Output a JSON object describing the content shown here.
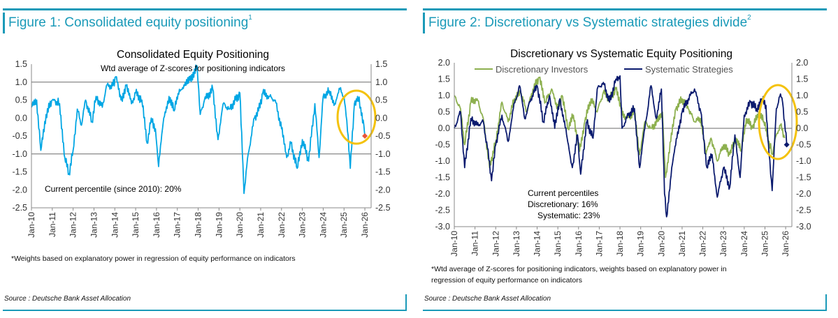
{
  "accent_color": "#1a9ab8",
  "panels": [
    {
      "figure_title": "Figure 1: Consolidated equity positioning",
      "figure_sup": "1",
      "footnote_lines": [
        "*Weights based on explanatory power in regression of equity performance on indicators"
      ],
      "source": "Source : Deutsche Bank Asset Allocation"
    },
    {
      "figure_title": "Figure 2: Discretionary vs Systematic strategies divide",
      "figure_sup": "2",
      "footnote_lines": [
        "*Wtd average of Z-scores for positioning indicators, weights based on explanatory power in",
        "regression of equity performance on indicators"
      ],
      "source": "Source : Deutsche Bank Asset Allocation"
    }
  ],
  "chart_data": [
    {
      "type": "line",
      "title": "Consolidated Equity Positioning",
      "subtitle": "Wtd average of Z-scores for positioning indicators",
      "annotations": [
        "Current percentile (since 2010): 20%"
      ],
      "x_ticks": [
        "Jan-10",
        "Jan-11",
        "Jan-12",
        "Jan-13",
        "Jan-14",
        "Jan-15",
        "Jan-16",
        "Jan-17",
        "Jan-18",
        "Jan-19",
        "Jan-20",
        "Jan-21",
        "Jan-22",
        "Jan-23",
        "Jan-24",
        "Jan-25",
        "Jan-26"
      ],
      "y_ticks": [
        "1.5",
        "1.0",
        "0.5",
        "0.0",
        "-0.5",
        "-1.0",
        "-1.5",
        "-2.0",
        "-2.5"
      ],
      "ylim": [
        -2.5,
        1.5
      ],
      "reference_lines": [
        1,
        -1
      ],
      "highlight_circle": true,
      "series": [
        {
          "name": "Consolidated",
          "color": "#00a6e4",
          "points": [
            [
              2010.0,
              0.3
            ],
            [
              2010.25,
              0.5
            ],
            [
              2010.45,
              -0.9
            ],
            [
              2010.7,
              0.1
            ],
            [
              2011.0,
              0.5
            ],
            [
              2011.35,
              0.4
            ],
            [
              2011.6,
              -1.1
            ],
            [
              2011.8,
              -1.55
            ],
            [
              2012.0,
              -0.9
            ],
            [
              2012.2,
              0.25
            ],
            [
              2012.4,
              -0.2
            ],
            [
              2012.6,
              0.5
            ],
            [
              2012.9,
              -0.1
            ],
            [
              2013.1,
              0.6
            ],
            [
              2013.4,
              0.3
            ],
            [
              2013.6,
              0.9
            ],
            [
              2013.9,
              0.9
            ],
            [
              2014.05,
              1.15
            ],
            [
              2014.3,
              0.5
            ],
            [
              2014.55,
              0.9
            ],
            [
              2014.8,
              0.4
            ],
            [
              2015.0,
              0.7
            ],
            [
              2015.3,
              0.5
            ],
            [
              2015.55,
              -0.7
            ],
            [
              2015.75,
              0.0
            ],
            [
              2015.95,
              -0.3
            ],
            [
              2016.1,
              -1.35
            ],
            [
              2016.35,
              0.0
            ],
            [
              2016.6,
              0.6
            ],
            [
              2016.85,
              0.2
            ],
            [
              2017.1,
              0.8
            ],
            [
              2017.35,
              0.9
            ],
            [
              2017.6,
              1.05
            ],
            [
              2017.95,
              1.45
            ],
            [
              2018.1,
              0.1
            ],
            [
              2018.3,
              0.5
            ],
            [
              2018.7,
              0.8
            ],
            [
              2018.95,
              -0.6
            ],
            [
              2019.2,
              0.4
            ],
            [
              2019.5,
              0.25
            ],
            [
              2019.8,
              0.5
            ],
            [
              2020.0,
              0.7
            ],
            [
              2020.15,
              -1.3
            ],
            [
              2020.2,
              -2.1
            ],
            [
              2020.4,
              -1.0
            ],
            [
              2020.7,
              0.0
            ],
            [
              2020.9,
              0.2
            ],
            [
              2021.1,
              0.7
            ],
            [
              2021.4,
              0.6
            ],
            [
              2021.7,
              0.5
            ],
            [
              2022.0,
              -0.3
            ],
            [
              2022.25,
              -1.1
            ],
            [
              2022.45,
              -0.7
            ],
            [
              2022.75,
              -1.4
            ],
            [
              2023.0,
              -0.6
            ],
            [
              2023.3,
              -1.2
            ],
            [
              2023.6,
              0.4
            ],
            [
              2023.8,
              -1.1
            ],
            [
              2024.0,
              0.6
            ],
            [
              2024.3,
              0.75
            ],
            [
              2024.55,
              0.4
            ],
            [
              2024.8,
              0.8
            ],
            [
              2025.0,
              0.6
            ],
            [
              2025.2,
              -0.5
            ],
            [
              2025.3,
              -1.4
            ],
            [
              2025.5,
              0.4
            ],
            [
              2025.65,
              0.6
            ],
            [
              2025.8,
              0.3
            ],
            [
              2025.95,
              -0.2
            ],
            [
              2026.0,
              -0.5
            ]
          ]
        }
      ]
    },
    {
      "type": "line",
      "title": "Discretionary  vs Systematic Equity Positioning",
      "legend": [
        "Discretionary Investors",
        "Systematic Strategies"
      ],
      "annotations": [
        "Current percentiles",
        "Discretionary: 16%",
        "Systematic: 23%"
      ],
      "x_ticks": [
        "Jan-10",
        "Jan-11",
        "Jan-12",
        "Jan-13",
        "Jan-14",
        "Jan-15",
        "Jan-16",
        "Jan-17",
        "Jan-18",
        "Jan-19",
        "Jan-20",
        "Jan-21",
        "Jan-22",
        "Jan-23",
        "Jan-24",
        "Jan-25",
        "Jan-26"
      ],
      "y_ticks": [
        "2.0",
        "1.5",
        "1.0",
        "0.5",
        "0.0",
        "-0.5",
        "-1.0",
        "-1.5",
        "-2.0",
        "-2.5",
        "-3.0"
      ],
      "ylim": [
        -3.0,
        2.0
      ],
      "reference_lines": [
        0
      ],
      "highlight_circle": true,
      "series": [
        {
          "name": "Discretionary Investors",
          "color": "#8db04f",
          "points": [
            [
              2010.0,
              1.0
            ],
            [
              2010.3,
              0.6
            ],
            [
              2010.5,
              -0.5
            ],
            [
              2010.8,
              0.8
            ],
            [
              2011.1,
              0.9
            ],
            [
              2011.4,
              0.3
            ],
            [
              2011.7,
              -1.2
            ],
            [
              2012.0,
              -0.4
            ],
            [
              2012.3,
              0.8
            ],
            [
              2012.6,
              0.2
            ],
            [
              2012.9,
              0.9
            ],
            [
              2013.2,
              1.1
            ],
            [
              2013.5,
              0.5
            ],
            [
              2013.8,
              1.2
            ],
            [
              2014.1,
              1.55
            ],
            [
              2014.4,
              0.8
            ],
            [
              2014.7,
              1.2
            ],
            [
              2014.95,
              0.6
            ],
            [
              2015.2,
              1.0
            ],
            [
              2015.5,
              0.0
            ],
            [
              2015.75,
              0.4
            ],
            [
              2016.05,
              -0.7
            ],
            [
              2016.3,
              0.2
            ],
            [
              2016.6,
              0.9
            ],
            [
              2016.9,
              0.5
            ],
            [
              2017.2,
              1.1
            ],
            [
              2017.5,
              0.9
            ],
            [
              2017.8,
              1.2
            ],
            [
              2018.05,
              0.6
            ],
            [
              2018.3,
              0.3
            ],
            [
              2018.7,
              0.5
            ],
            [
              2018.95,
              -0.8
            ],
            [
              2019.2,
              0.2
            ],
            [
              2019.5,
              0.0
            ],
            [
              2019.8,
              0.2
            ],
            [
              2020.05,
              0.5
            ],
            [
              2020.2,
              -1.5
            ],
            [
              2020.45,
              -0.4
            ],
            [
              2020.7,
              0.6
            ],
            [
              2021.0,
              0.9
            ],
            [
              2021.3,
              0.6
            ],
            [
              2021.6,
              0.2
            ],
            [
              2021.9,
              0.3
            ],
            [
              2022.15,
              -0.8
            ],
            [
              2022.4,
              -0.3
            ],
            [
              2022.7,
              -1.0
            ],
            [
              2023.0,
              -0.5
            ],
            [
              2023.3,
              -0.8
            ],
            [
              2023.6,
              -0.3
            ],
            [
              2023.85,
              -0.7
            ],
            [
              2024.1,
              0.3
            ],
            [
              2024.4,
              0.0
            ],
            [
              2024.7,
              0.5
            ],
            [
              2024.95,
              0.2
            ],
            [
              2025.2,
              -0.4
            ],
            [
              2025.35,
              -0.8
            ],
            [
              2025.55,
              -0.2
            ],
            [
              2025.75,
              0.1
            ],
            [
              2025.95,
              -0.3
            ]
          ]
        },
        {
          "name": "Systematic Strategies",
          "color": "#0a1a6e",
          "points": [
            [
              2010.0,
              0.0
            ],
            [
              2010.3,
              0.5
            ],
            [
              2010.5,
              -1.2
            ],
            [
              2010.8,
              0.3
            ],
            [
              2011.1,
              0.1
            ],
            [
              2011.4,
              0.2
            ],
            [
              2011.6,
              -0.6
            ],
            [
              2011.8,
              -1.6
            ],
            [
              2012.0,
              -0.5
            ],
            [
              2012.3,
              0.4
            ],
            [
              2012.6,
              -0.4
            ],
            [
              2012.85,
              0.6
            ],
            [
              2013.15,
              1.3
            ],
            [
              2013.4,
              0.3
            ],
            [
              2013.7,
              0.9
            ],
            [
              2014.0,
              1.3
            ],
            [
              2014.3,
              0.2
            ],
            [
              2014.6,
              1.0
            ],
            [
              2014.85,
              0.0
            ],
            [
              2015.1,
              0.9
            ],
            [
              2015.45,
              -0.3
            ],
            [
              2015.7,
              -1.2
            ],
            [
              2015.95,
              -0.2
            ],
            [
              2016.1,
              -1.4
            ],
            [
              2016.4,
              0.2
            ],
            [
              2016.7,
              -0.3
            ],
            [
              2016.9,
              1.2
            ],
            [
              2017.2,
              1.4
            ],
            [
              2017.5,
              0.8
            ],
            [
              2017.8,
              1.5
            ],
            [
              2018.0,
              1.6
            ],
            [
              2018.1,
              0.0
            ],
            [
              2018.4,
              0.4
            ],
            [
              2018.7,
              0.6
            ],
            [
              2018.95,
              -1.2
            ],
            [
              2019.2,
              0.0
            ],
            [
              2019.5,
              1.3
            ],
            [
              2019.75,
              0.3
            ],
            [
              2020.0,
              1.2
            ],
            [
              2020.15,
              -2.0
            ],
            [
              2020.25,
              -2.7
            ],
            [
              2020.5,
              -1.2
            ],
            [
              2020.75,
              -0.3
            ],
            [
              2021.0,
              0.5
            ],
            [
              2021.3,
              0.9
            ],
            [
              2021.6,
              1.2
            ],
            [
              2021.9,
              0.5
            ],
            [
              2022.2,
              -1.2
            ],
            [
              2022.45,
              -0.8
            ],
            [
              2022.7,
              -2.1
            ],
            [
              2023.0,
              -1.2
            ],
            [
              2023.3,
              -1.8
            ],
            [
              2023.55,
              -0.2
            ],
            [
              2023.8,
              -1.5
            ],
            [
              2024.0,
              0.4
            ],
            [
              2024.3,
              0.8
            ],
            [
              2024.6,
              0.6
            ],
            [
              2024.85,
              0.9
            ],
            [
              2025.05,
              0.7
            ],
            [
              2025.2,
              -0.8
            ],
            [
              2025.35,
              -1.9
            ],
            [
              2025.55,
              0.6
            ],
            [
              2025.75,
              1.05
            ],
            [
              2025.85,
              0.8
            ],
            [
              2025.95,
              0.2
            ],
            [
              2026.05,
              -0.5
            ]
          ]
        }
      ]
    }
  ]
}
